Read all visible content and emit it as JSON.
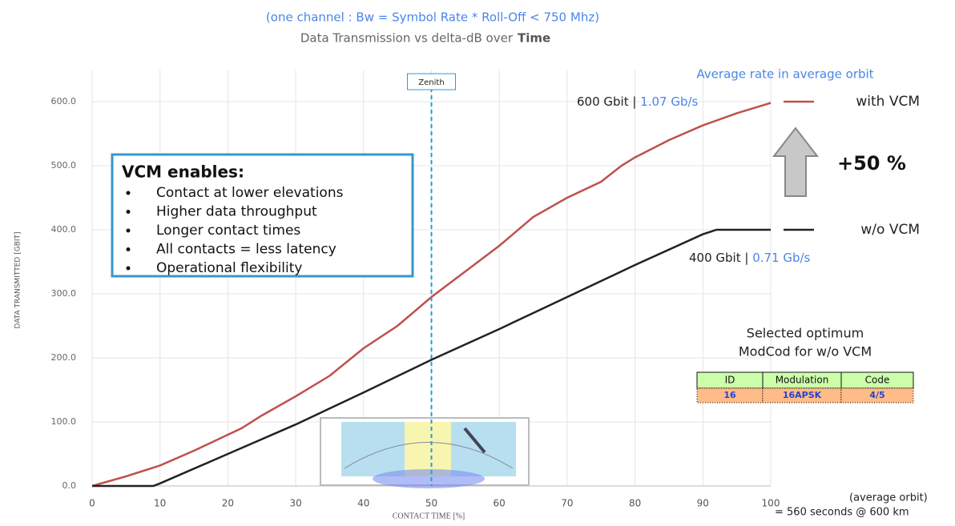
{
  "chart_data": {
    "type": "line",
    "subtitle": "(one channel :  Bw = Symbol Rate * Roll-Off < 750 Mhz)",
    "title": "Data Transmission vs delta-dB over",
    "title_emphasis": "Time",
    "xlabel": "CONTACT TIME [%]",
    "ylabel": "DATA TRANSMITTED [GBIT]",
    "xlim": [
      0,
      100
    ],
    "ylim": [
      0,
      650
    ],
    "xticks": [
      0,
      10,
      20,
      30,
      40,
      50,
      60,
      70,
      80,
      90,
      100
    ],
    "yticks": [
      {
        "value": 0,
        "label": "0.0"
      },
      {
        "value": 100,
        "label": "100.0"
      },
      {
        "value": 200,
        "label": "200.0"
      },
      {
        "value": 300,
        "label": "300.0"
      },
      {
        "value": 400,
        "label": "400.0"
      },
      {
        "value": 500,
        "label": "500.0"
      },
      {
        "value": 600,
        "label": "600.0"
      }
    ],
    "grid": true,
    "series": [
      {
        "name": "with VCM",
        "color": "#c0504d",
        "x": [
          0,
          5,
          10,
          15,
          20,
          22,
          25,
          30,
          35,
          40,
          45,
          50,
          55,
          60,
          65,
          70,
          75,
          78,
          80,
          85,
          90,
          95,
          100
        ],
        "values": [
          0,
          15,
          32,
          55,
          80,
          90,
          110,
          140,
          172,
          215,
          250,
          295,
          335,
          375,
          420,
          450,
          475,
          500,
          513,
          540,
          563,
          582,
          598
        ],
        "total_label": "600 Gbit | ",
        "rate_label": "1.07 Gb/s"
      },
      {
        "name": "w/o VCM",
        "color": "#222222",
        "x": [
          0,
          9,
          10,
          20,
          30,
          40,
          50,
          60,
          70,
          80,
          90,
          92,
          100
        ],
        "values": [
          0,
          0,
          4,
          50,
          96,
          146,
          197,
          245,
          295,
          345,
          393,
          400,
          400
        ],
        "total_label": "400 Gbit | ",
        "rate_label": "0.71 Gb/s"
      }
    ],
    "zenith": {
      "x": 50,
      "label": "Zenith"
    },
    "rate_heading": "Average rate in average orbit",
    "gain_label": "+50 %",
    "vcm_box": {
      "title": "VCM enables:",
      "items": [
        "Contact at lower elevations",
        "Higher data throughput",
        "Longer contact times",
        "All contacts = less latency",
        "Operational flexibility"
      ]
    },
    "modcod": {
      "title": [
        "Selected optimum",
        "ModCod for w/o VCM"
      ],
      "header": [
        "ID",
        "Modulation",
        "Code"
      ],
      "row": [
        "16",
        "16APSK",
        "4/5"
      ]
    },
    "footnote": [
      "(average orbit)",
      "= 560 seconds @ 600 km"
    ]
  }
}
